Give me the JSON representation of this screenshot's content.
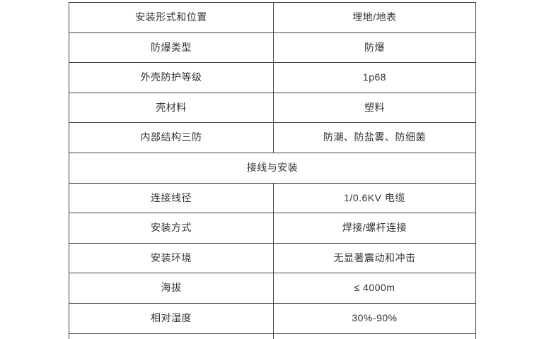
{
  "table": {
    "name": "product-spec-table",
    "colors": {
      "border": "#444444",
      "text": "#333333",
      "background": "#ffffff"
    },
    "rows": [
      {
        "type": "pair",
        "label": "安装形式和位置",
        "value": "埋地/地表"
      },
      {
        "type": "pair",
        "label": "防爆类型",
        "value": "防爆"
      },
      {
        "type": "pair",
        "label": "外壳防护等级",
        "value": "1p68"
      },
      {
        "type": "pair",
        "label": "壳材料",
        "value": "塑料"
      },
      {
        "type": "pair",
        "label": "内部结构三防",
        "value": "防潮、防盐雾、防细菌"
      },
      {
        "type": "section",
        "label": "接线与安装"
      },
      {
        "type": "pair",
        "label": "连接线径",
        "value": "1/0.6KV 电缆"
      },
      {
        "type": "pair",
        "label": "安装方式",
        "value": "焊接/螺杆连接"
      },
      {
        "type": "pair",
        "label": "安装环境",
        "value": "无显著震动和冲击"
      },
      {
        "type": "pair",
        "label": "海拔",
        "value": "≤ 4000m"
      },
      {
        "type": "pair",
        "label": "相对湿度",
        "value": "30%-90%"
      },
      {
        "type": "partial",
        "label": ""
      }
    ]
  }
}
